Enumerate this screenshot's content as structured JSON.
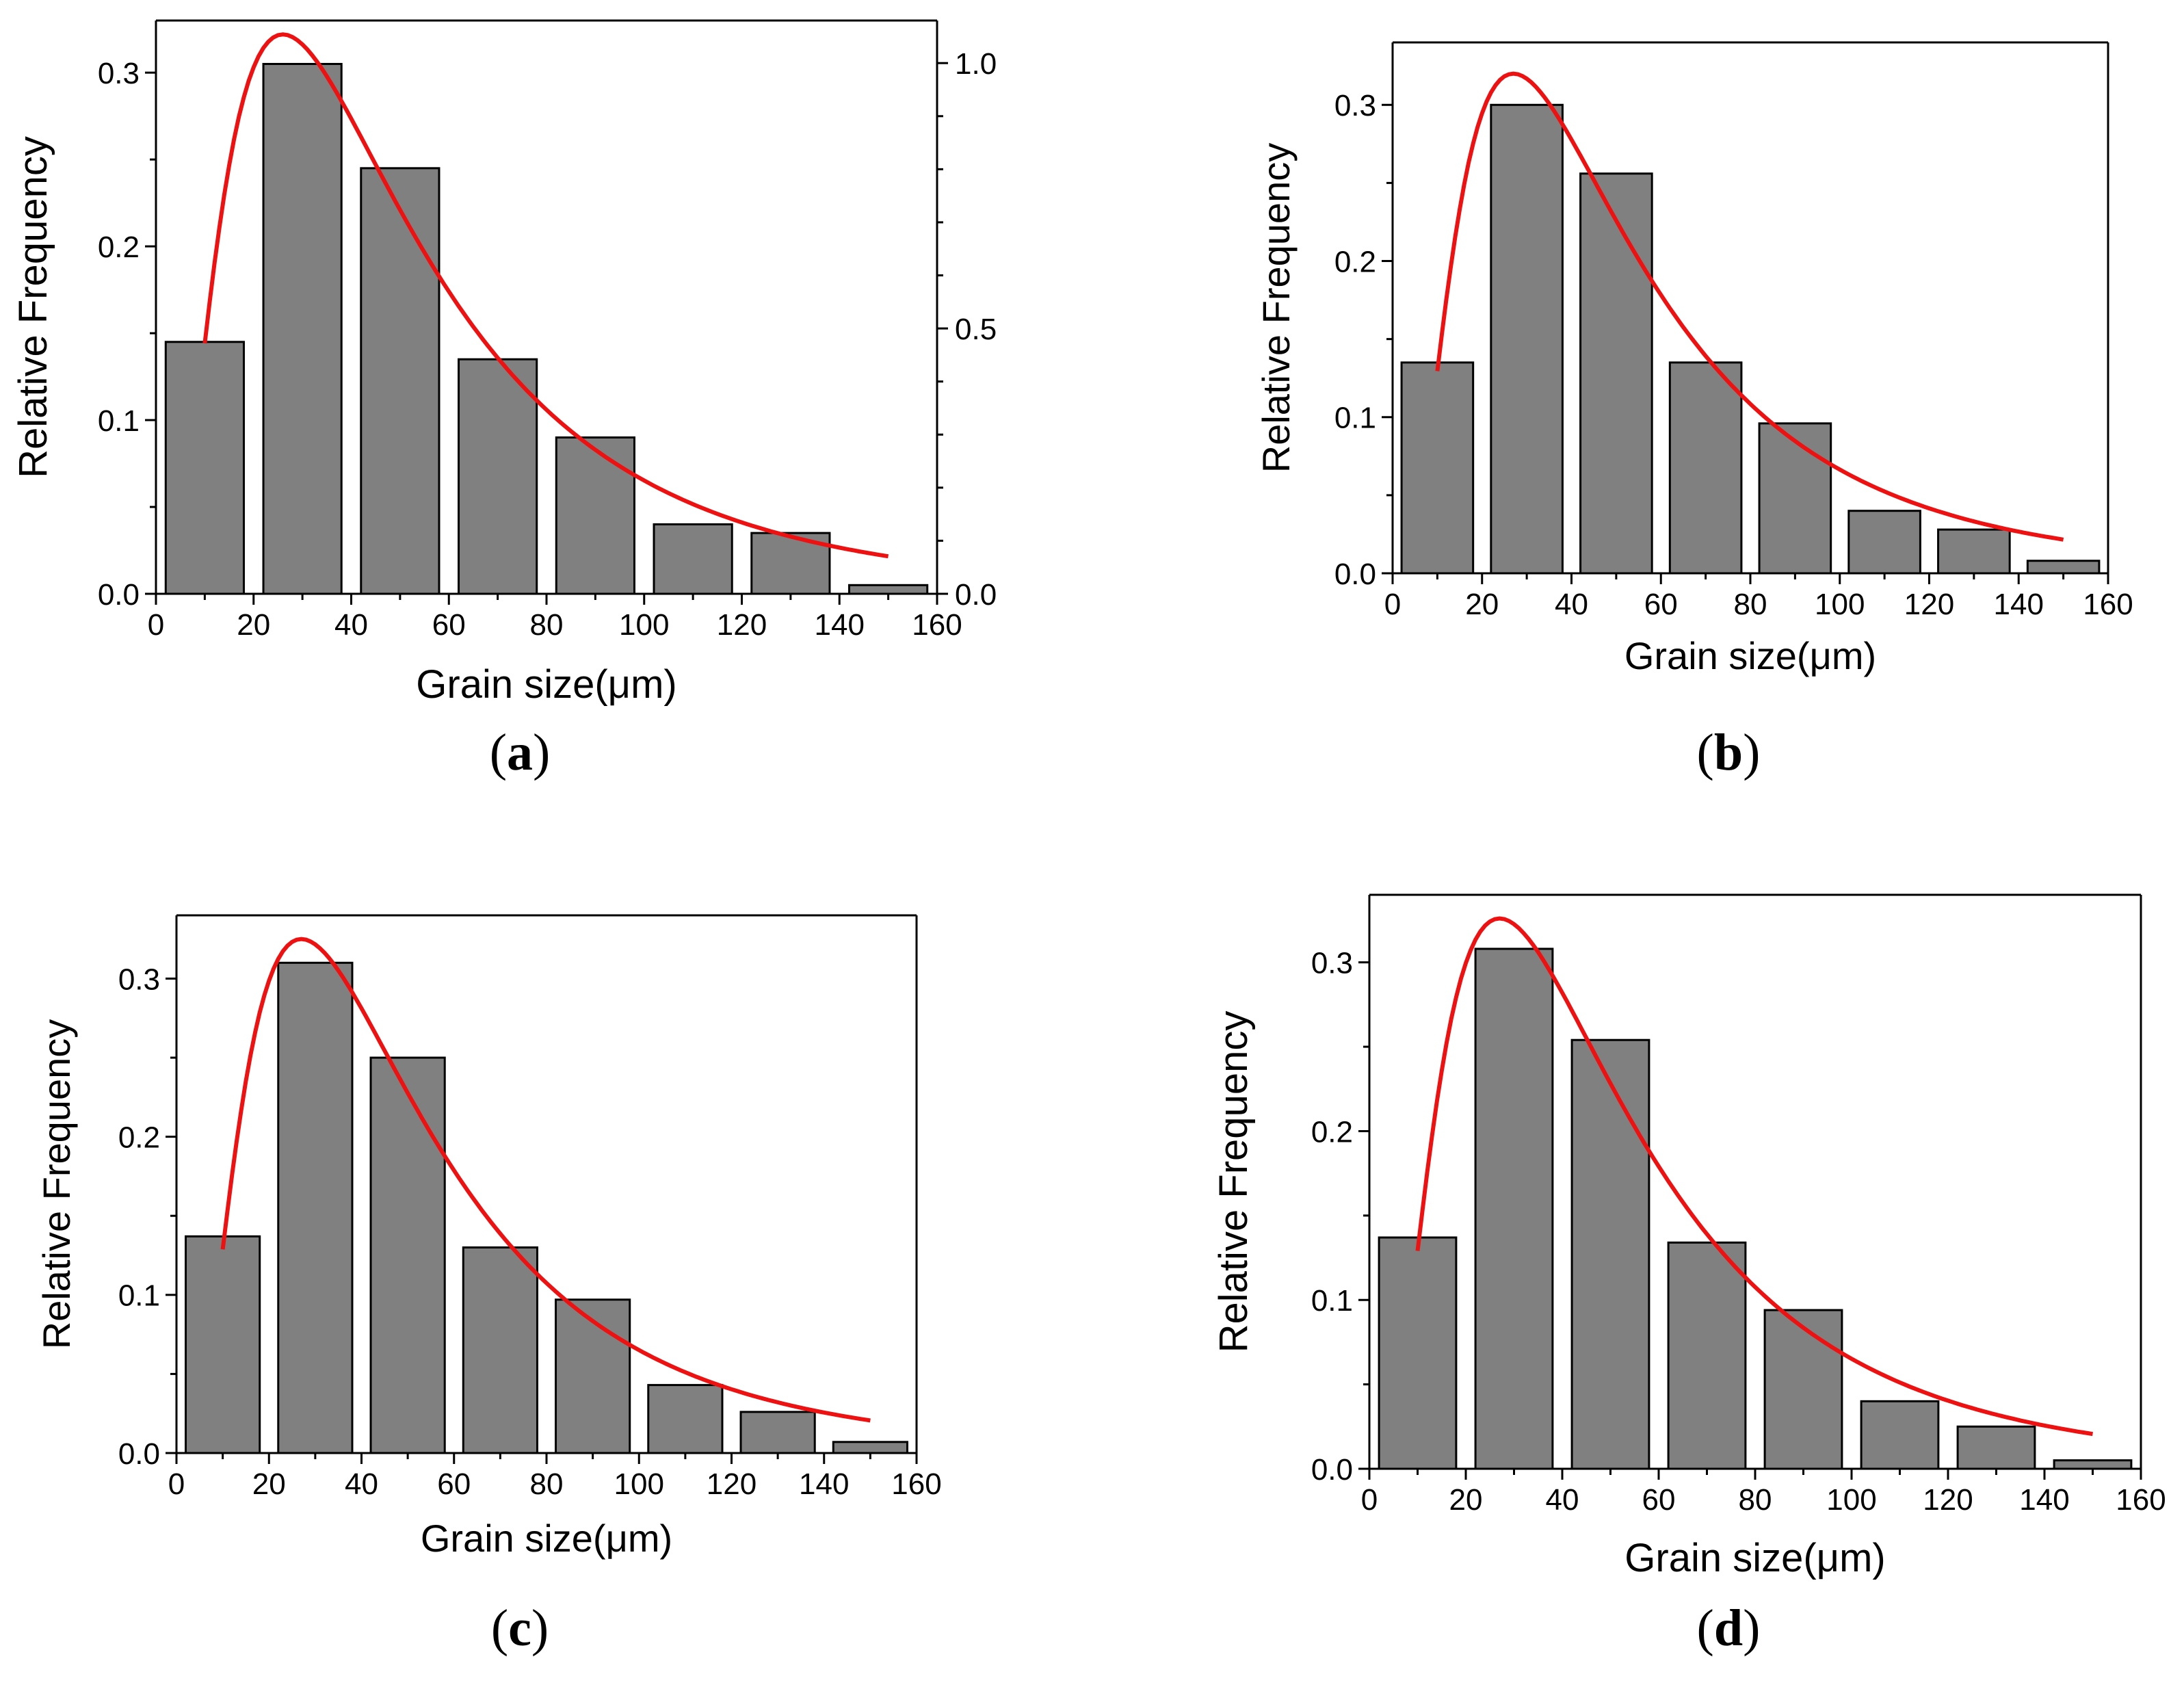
{
  "colors": {
    "bar_fill": "#808080",
    "bar_stroke": "#000000",
    "fit_curve": "#ee1111",
    "axis": "#000000"
  },
  "chart_data": [
    {
      "id": "a",
      "type": "bar",
      "panel_label": "a",
      "xlabel": "Grain size(μm)",
      "ylabel": "Relative Frequency",
      "xlim": [
        0,
        160
      ],
      "ylim": [
        0,
        0.33
      ],
      "x_ticks": [
        "0",
        "20",
        "40",
        "60",
        "80",
        "100",
        "120",
        "140",
        "160"
      ],
      "y_ticks": [
        "0.0",
        "0.1",
        "0.2",
        "0.3"
      ],
      "y2_ticks": [
        "0.0",
        "0.5",
        "1.0"
      ],
      "y2lim": [
        0,
        1.0
      ],
      "bin_centers": [
        10,
        30,
        50,
        70,
        90,
        110,
        130,
        150
      ],
      "values": [
        0.145,
        0.305,
        0.245,
        0.135,
        0.09,
        0.04,
        0.035,
        0.005
      ],
      "fit": {
        "type": "lognormal",
        "x_range": [
          10,
          150
        ],
        "peak_x": 26,
        "peak_y": 0.322,
        "end_y": 0.023
      }
    },
    {
      "id": "b",
      "type": "bar",
      "panel_label": "b",
      "xlabel": "Grain size(μm)",
      "ylabel": "Relative Frequency",
      "xlim": [
        0,
        160
      ],
      "ylim": [
        0,
        0.34
      ],
      "x_ticks": [
        "0",
        "20",
        "40",
        "60",
        "80",
        "100",
        "120",
        "140",
        "160"
      ],
      "y_ticks": [
        "0.0",
        "0.1",
        "0.2",
        "0.3"
      ],
      "bin_centers": [
        10,
        30,
        50,
        70,
        90,
        110,
        130,
        150
      ],
      "values": [
        0.135,
        0.3,
        0.256,
        0.135,
        0.096,
        0.04,
        0.028,
        0.008
      ],
      "fit": {
        "type": "lognormal",
        "x_range": [
          10,
          150
        ],
        "peak_x": 27,
        "peak_y": 0.32,
        "end_y": 0.023
      }
    },
    {
      "id": "c",
      "type": "bar",
      "panel_label": "c",
      "xlabel": "Grain size(μm)",
      "ylabel": "Relative Frequency",
      "xlim": [
        0,
        160
      ],
      "ylim": [
        0,
        0.34
      ],
      "x_ticks": [
        "0",
        "20",
        "40",
        "60",
        "80",
        "100",
        "120",
        "140",
        "160"
      ],
      "y_ticks": [
        "0.0",
        "0.1",
        "0.2",
        "0.3"
      ],
      "bin_centers": [
        10,
        30,
        50,
        70,
        90,
        110,
        130,
        150
      ],
      "values": [
        0.137,
        0.31,
        0.25,
        0.13,
        0.097,
        0.043,
        0.026,
        0.007
      ],
      "fit": {
        "type": "lognormal",
        "x_range": [
          10,
          150
        ],
        "peak_x": 27,
        "peak_y": 0.325,
        "end_y": 0.022
      }
    },
    {
      "id": "d",
      "type": "bar",
      "panel_label": "d",
      "xlabel": "Grain size(μm)",
      "ylabel": "Relative Frequency",
      "xlim": [
        0,
        160
      ],
      "ylim": [
        0,
        0.34
      ],
      "x_ticks": [
        "0",
        "20",
        "40",
        "60",
        "80",
        "100",
        "120",
        "140",
        "160"
      ],
      "y_ticks": [
        "0.0",
        "0.1",
        "0.2",
        "0.3"
      ],
      "bin_centers": [
        10,
        30,
        50,
        70,
        90,
        110,
        130,
        150
      ],
      "values": [
        0.137,
        0.308,
        0.254,
        0.134,
        0.094,
        0.04,
        0.025,
        0.005
      ],
      "fit": {
        "type": "lognormal",
        "x_range": [
          10,
          150
        ],
        "peak_x": 27,
        "peak_y": 0.326,
        "end_y": 0.022
      }
    }
  ]
}
